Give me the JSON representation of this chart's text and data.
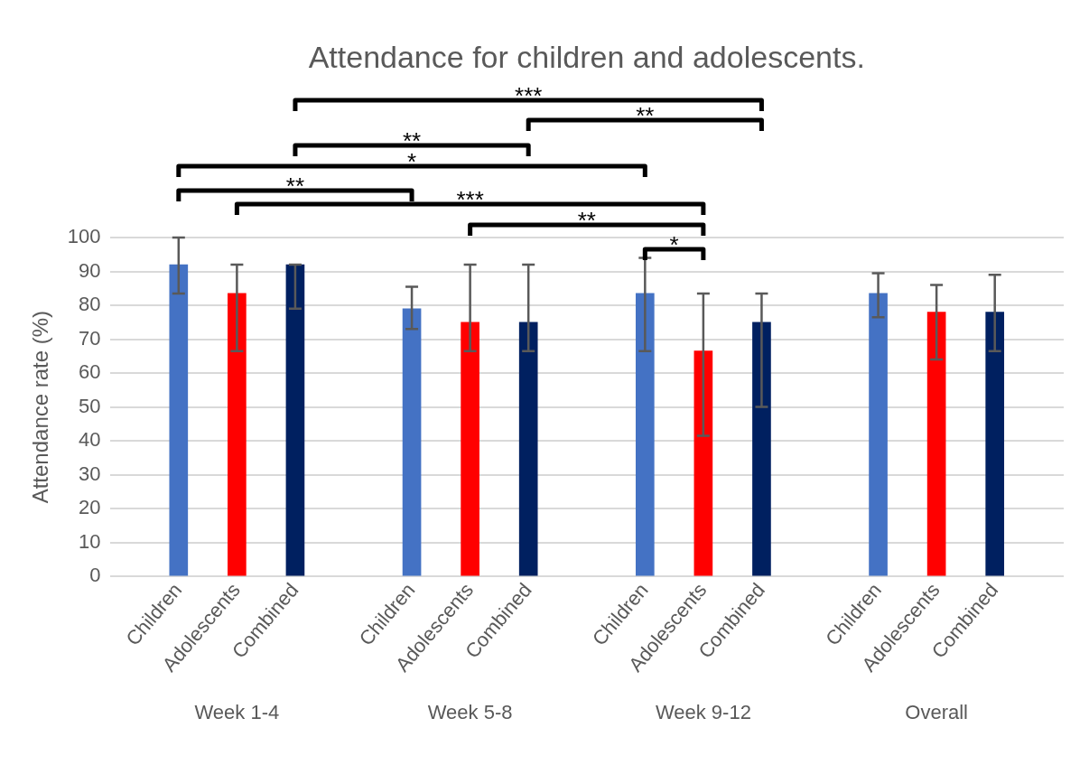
{
  "chart_data": {
    "type": "bar",
    "title": "Attendance for children and adolescents.",
    "ylabel": "Attendance rate (%)",
    "categories": [
      "Children",
      "Adolescents",
      "Combined",
      "Children",
      "Adolescents",
      "Combined",
      "Children",
      "Adolescents",
      "Combined",
      "Children",
      "Adolescents",
      "Combined"
    ],
    "values": [
      92,
      83.5,
      92,
      79,
      75,
      75,
      83.5,
      66.5,
      75,
      83.5,
      78,
      78
    ],
    "colors": [
      "#4472c4",
      "#ff0000",
      "#002060",
      "#4472c4",
      "#ff0000",
      "#002060",
      "#4472c4",
      "#ff0000",
      "#002060",
      "#4472c4",
      "#ff0000",
      "#002060"
    ],
    "errors": [
      [
        83.5,
        100
      ],
      [
        66.5,
        92
      ],
      [
        79,
        92
      ],
      [
        73,
        85.5
      ],
      [
        66.5,
        92
      ],
      [
        66.5,
        92
      ],
      [
        66.5,
        94
      ],
      [
        41.5,
        83.5
      ],
      [
        50,
        83.5
      ],
      [
        76.5,
        89.5
      ],
      [
        64,
        86
      ],
      [
        66.5,
        89
      ]
    ],
    "ylim": [
      0,
      100
    ],
    "yticks": [
      0,
      10,
      20,
      30,
      40,
      50,
      60,
      70,
      80,
      90,
      100
    ],
    "grid": "y",
    "legend": false,
    "annotations": [
      "***",
      "**",
      "**",
      "*",
      "**",
      "***",
      "**",
      "*",
      "Week 1-4",
      "Week 5-8",
      "Week 9-12",
      "Overall"
    ]
  }
}
